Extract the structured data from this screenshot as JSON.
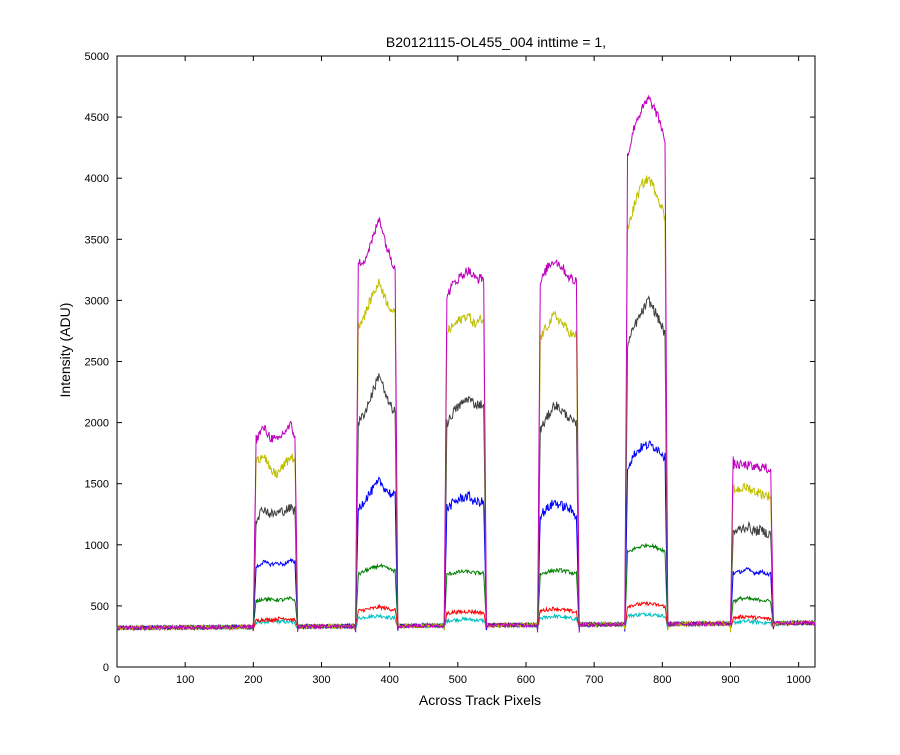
{
  "chart_data": {
    "type": "line",
    "title": "B20121115-OL455_004 inttime = 1,",
    "xlabel": "Across Track Pixels",
    "ylabel": "Intensity (ADU)",
    "xlim": [
      0,
      1024
    ],
    "ylim": [
      0,
      5000
    ],
    "x_ticks": [
      0,
      100,
      200,
      300,
      400,
      500,
      600,
      700,
      800,
      900,
      1000
    ],
    "y_ticks": [
      0,
      500,
      1000,
      1500,
      2000,
      2500,
      3000,
      3500,
      4000,
      4500,
      5000
    ],
    "grid": false,
    "legend": "none",
    "baseline": 320,
    "segments": [
      {
        "x_start": 200,
        "x_end": 265
      },
      {
        "x_start": 350,
        "x_end": 412
      },
      {
        "x_start": 480,
        "x_end": 542
      },
      {
        "x_start": 617,
        "x_end": 678
      },
      {
        "x_start": 745,
        "x_end": 808
      },
      {
        "x_start": 900,
        "x_end": 963
      }
    ],
    "series": [
      {
        "color": "#bf00bf",
        "levels": [
          1880,
          3450,
          3180,
          3250,
          4600,
          1650
        ],
        "points": [
          [
            205,
            1870
          ],
          [
            215,
            1960
          ],
          [
            225,
            1880
          ],
          [
            235,
            1850
          ],
          [
            245,
            1920
          ],
          [
            255,
            1980
          ],
          [
            260,
            1900
          ],
          [
            355,
            3300
          ],
          [
            365,
            3350
          ],
          [
            375,
            3500
          ],
          [
            385,
            3680
          ],
          [
            395,
            3450
          ],
          [
            405,
            3300
          ],
          [
            485,
            3050
          ],
          [
            495,
            3150
          ],
          [
            505,
            3200
          ],
          [
            515,
            3250
          ],
          [
            525,
            3180
          ],
          [
            535,
            3180
          ],
          [
            622,
            3150
          ],
          [
            632,
            3280
          ],
          [
            642,
            3330
          ],
          [
            652,
            3280
          ],
          [
            662,
            3200
          ],
          [
            672,
            3150
          ],
          [
            750,
            4200
          ],
          [
            760,
            4450
          ],
          [
            770,
            4560
          ],
          [
            780,
            4650
          ],
          [
            790,
            4550
          ],
          [
            800,
            4400
          ],
          [
            905,
            1660
          ],
          [
            915,
            1650
          ],
          [
            925,
            1650
          ],
          [
            935,
            1630
          ],
          [
            945,
            1640
          ],
          [
            955,
            1620
          ]
        ]
      },
      {
        "color": "#bfbf00",
        "levels": [
          1650,
          3000,
          2820,
          2800,
          3900,
          1450
        ],
        "points": [
          [
            205,
            1680
          ],
          [
            215,
            1750
          ],
          [
            225,
            1600
          ],
          [
            235,
            1580
          ],
          [
            245,
            1650
          ],
          [
            255,
            1720
          ],
          [
            260,
            1700
          ],
          [
            355,
            2800
          ],
          [
            365,
            2900
          ],
          [
            375,
            3050
          ],
          [
            385,
            3150
          ],
          [
            395,
            3000
          ],
          [
            405,
            2900
          ],
          [
            485,
            2750
          ],
          [
            495,
            2800
          ],
          [
            505,
            2850
          ],
          [
            515,
            2880
          ],
          [
            525,
            2800
          ],
          [
            535,
            2850
          ],
          [
            622,
            2700
          ],
          [
            632,
            2800
          ],
          [
            642,
            2880
          ],
          [
            652,
            2820
          ],
          [
            662,
            2750
          ],
          [
            672,
            2700
          ],
          [
            750,
            3600
          ],
          [
            760,
            3800
          ],
          [
            770,
            3950
          ],
          [
            780,
            4000
          ],
          [
            790,
            3900
          ],
          [
            800,
            3750
          ],
          [
            905,
            1450
          ],
          [
            915,
            1460
          ],
          [
            925,
            1470
          ],
          [
            935,
            1440
          ],
          [
            945,
            1420
          ],
          [
            955,
            1400
          ]
        ]
      },
      {
        "color": "#404040",
        "levels": [
          1270,
          2200,
          2150,
          2100,
          2900,
          1130
        ],
        "points": [
          [
            205,
            1220
          ],
          [
            215,
            1300
          ],
          [
            225,
            1250
          ],
          [
            235,
            1260
          ],
          [
            245,
            1280
          ],
          [
            255,
            1300
          ],
          [
            260,
            1280
          ],
          [
            355,
            2000
          ],
          [
            365,
            2100
          ],
          [
            375,
            2250
          ],
          [
            385,
            2400
          ],
          [
            395,
            2200
          ],
          [
            405,
            2100
          ],
          [
            485,
            2000
          ],
          [
            495,
            2100
          ],
          [
            505,
            2150
          ],
          [
            515,
            2200
          ],
          [
            525,
            2150
          ],
          [
            535,
            2150
          ],
          [
            622,
            1950
          ],
          [
            632,
            2050
          ],
          [
            642,
            2150
          ],
          [
            652,
            2100
          ],
          [
            662,
            2050
          ],
          [
            672,
            1980
          ],
          [
            750,
            2650
          ],
          [
            760,
            2800
          ],
          [
            770,
            2900
          ],
          [
            780,
            3000
          ],
          [
            790,
            2900
          ],
          [
            800,
            2780
          ],
          [
            905,
            1100
          ],
          [
            915,
            1130
          ],
          [
            925,
            1150
          ],
          [
            935,
            1110
          ],
          [
            945,
            1120
          ],
          [
            955,
            1090
          ]
        ]
      },
      {
        "color": "#0000ff",
        "levels": [
          850,
          1450,
          1370,
          1330,
          1790,
          780
        ],
        "points": [
          [
            205,
            820
          ],
          [
            215,
            860
          ],
          [
            225,
            840
          ],
          [
            235,
            850
          ],
          [
            245,
            840
          ],
          [
            255,
            870
          ],
          [
            260,
            860
          ],
          [
            355,
            1300
          ],
          [
            365,
            1380
          ],
          [
            375,
            1450
          ],
          [
            385,
            1520
          ],
          [
            395,
            1450
          ],
          [
            405,
            1400
          ],
          [
            485,
            1300
          ],
          [
            495,
            1350
          ],
          [
            505,
            1380
          ],
          [
            515,
            1400
          ],
          [
            525,
            1350
          ],
          [
            535,
            1350
          ],
          [
            622,
            1250
          ],
          [
            632,
            1300
          ],
          [
            642,
            1350
          ],
          [
            652,
            1320
          ],
          [
            662,
            1300
          ],
          [
            672,
            1250
          ],
          [
            750,
            1650
          ],
          [
            760,
            1750
          ],
          [
            770,
            1800
          ],
          [
            780,
            1820
          ],
          [
            790,
            1800
          ],
          [
            800,
            1750
          ],
          [
            905,
            770
          ],
          [
            915,
            780
          ],
          [
            925,
            800
          ],
          [
            935,
            770
          ],
          [
            945,
            780
          ],
          [
            955,
            760
          ]
        ]
      },
      {
        "color": "#008000",
        "levels": [
          550,
          800,
          770,
          780,
          960,
          550
        ],
        "points": [
          [
            205,
            540
          ],
          [
            215,
            560
          ],
          [
            225,
            550
          ],
          [
            235,
            550
          ],
          [
            245,
            550
          ],
          [
            255,
            560
          ],
          [
            260,
            550
          ],
          [
            355,
            760
          ],
          [
            365,
            790
          ],
          [
            375,
            810
          ],
          [
            385,
            830
          ],
          [
            395,
            810
          ],
          [
            405,
            790
          ],
          [
            485,
            760
          ],
          [
            495,
            770
          ],
          [
            505,
            780
          ],
          [
            515,
            780
          ],
          [
            525,
            770
          ],
          [
            535,
            770
          ],
          [
            622,
            760
          ],
          [
            632,
            780
          ],
          [
            642,
            790
          ],
          [
            652,
            790
          ],
          [
            662,
            780
          ],
          [
            672,
            760
          ],
          [
            750,
            940
          ],
          [
            760,
            970
          ],
          [
            770,
            990
          ],
          [
            780,
            1000
          ],
          [
            790,
            980
          ],
          [
            800,
            960
          ],
          [
            905,
            540
          ],
          [
            915,
            560
          ],
          [
            925,
            560
          ],
          [
            935,
            550
          ],
          [
            945,
            550
          ],
          [
            955,
            540
          ]
        ]
      },
      {
        "color": "#ff0000",
        "levels": [
          390,
          480,
          450,
          470,
          510,
          410
        ],
        "points": [
          [
            205,
            380
          ],
          [
            215,
            390
          ],
          [
            225,
            385
          ],
          [
            235,
            395
          ],
          [
            245,
            400
          ],
          [
            255,
            390
          ],
          [
            260,
            385
          ],
          [
            355,
            460
          ],
          [
            365,
            470
          ],
          [
            375,
            480
          ],
          [
            385,
            490
          ],
          [
            395,
            480
          ],
          [
            405,
            470
          ],
          [
            485,
            440
          ],
          [
            495,
            450
          ],
          [
            505,
            450
          ],
          [
            515,
            455
          ],
          [
            525,
            450
          ],
          [
            535,
            445
          ],
          [
            622,
            460
          ],
          [
            632,
            470
          ],
          [
            642,
            480
          ],
          [
            652,
            470
          ],
          [
            662,
            460
          ],
          [
            672,
            450
          ],
          [
            750,
            500
          ],
          [
            760,
            510
          ],
          [
            770,
            515
          ],
          [
            780,
            520
          ],
          [
            790,
            510
          ],
          [
            800,
            500
          ],
          [
            905,
            400
          ],
          [
            915,
            410
          ],
          [
            925,
            415
          ],
          [
            935,
            405
          ],
          [
            945,
            400
          ],
          [
            955,
            395
          ]
        ]
      },
      {
        "color": "#00bfbf",
        "levels": [
          370,
          410,
          390,
          410,
          430,
          370
        ],
        "points": [
          [
            205,
            360
          ],
          [
            215,
            370
          ],
          [
            225,
            370
          ],
          [
            235,
            375
          ],
          [
            245,
            370
          ],
          [
            255,
            365
          ],
          [
            260,
            360
          ],
          [
            355,
            400
          ],
          [
            365,
            410
          ],
          [
            375,
            415
          ],
          [
            385,
            420
          ],
          [
            395,
            410
          ],
          [
            405,
            400
          ],
          [
            485,
            380
          ],
          [
            495,
            385
          ],
          [
            505,
            390
          ],
          [
            515,
            390
          ],
          [
            525,
            385
          ],
          [
            535,
            380
          ],
          [
            622,
            400
          ],
          [
            632,
            410
          ],
          [
            642,
            415
          ],
          [
            652,
            410
          ],
          [
            662,
            400
          ],
          [
            672,
            395
          ],
          [
            750,
            420
          ],
          [
            760,
            425
          ],
          [
            770,
            430
          ],
          [
            780,
            435
          ],
          [
            790,
            425
          ],
          [
            800,
            420
          ],
          [
            905,
            365
          ],
          [
            915,
            370
          ],
          [
            925,
            375
          ],
          [
            935,
            370
          ],
          [
            945,
            365
          ],
          [
            955,
            360
          ]
        ]
      }
    ]
  }
}
